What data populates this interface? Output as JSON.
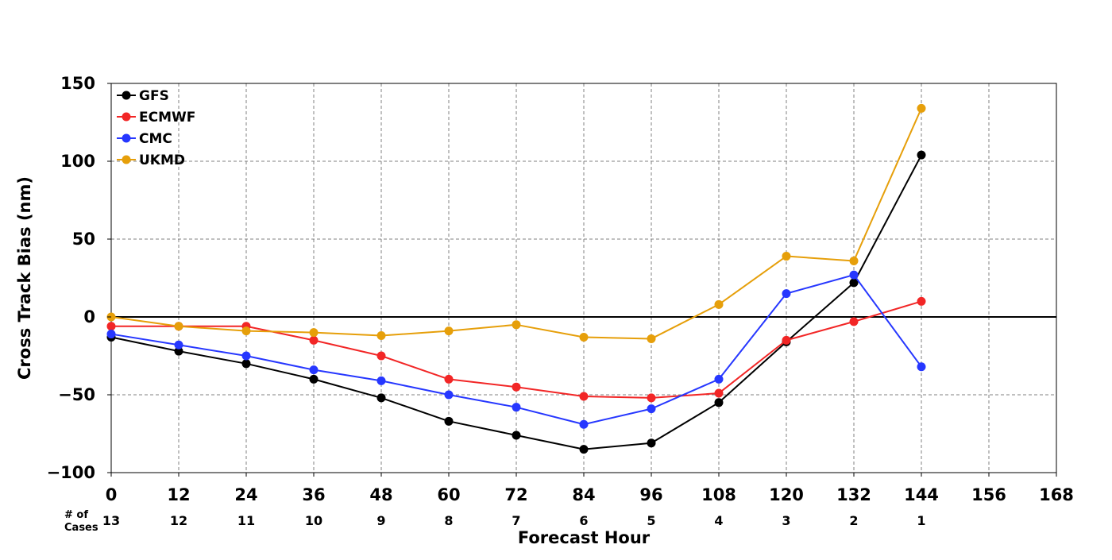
{
  "chart_data": {
    "type": "line",
    "xlabel": "Forecast Hour",
    "ylabel": "Cross Track Bias (nm)",
    "xlim": [
      0,
      168
    ],
    "ylim": [
      -100,
      150
    ],
    "x_ticks": [
      0,
      12,
      24,
      36,
      48,
      60,
      72,
      84,
      96,
      108,
      120,
      132,
      144,
      156,
      168
    ],
    "y_ticks": [
      -100,
      -50,
      0,
      50,
      100,
      150
    ],
    "y_tick_labels": [
      "−100",
      "−50",
      "0",
      "50",
      "100",
      "150"
    ],
    "grid": true,
    "legend_position": "top-left",
    "cases_title": "# of Cases",
    "cases": [
      {
        "x": 0,
        "n": 13
      },
      {
        "x": 12,
        "n": 12
      },
      {
        "x": 24,
        "n": 11
      },
      {
        "x": 36,
        "n": 10
      },
      {
        "x": 48,
        "n": 9
      },
      {
        "x": 60,
        "n": 8
      },
      {
        "x": 72,
        "n": 7
      },
      {
        "x": 84,
        "n": 6
      },
      {
        "x": 96,
        "n": 5
      },
      {
        "x": 108,
        "n": 4
      },
      {
        "x": 120,
        "n": 3
      },
      {
        "x": 132,
        "n": 2
      },
      {
        "x": 144,
        "n": 1
      }
    ],
    "x": [
      0,
      12,
      24,
      36,
      48,
      60,
      72,
      84,
      96,
      108,
      120,
      132,
      144
    ],
    "series": [
      {
        "name": "GFS",
        "color": "#000000",
        "values": [
          -13,
          -22,
          -30,
          -40,
          -52,
          -67,
          -76,
          -85,
          -81,
          -55,
          -16,
          22,
          104
        ]
      },
      {
        "name": "ECMWF",
        "color": "#f22626",
        "values": [
          -6,
          -6,
          -6,
          -15,
          -25,
          -40,
          -45,
          -51,
          -52,
          -49,
          -15,
          -3,
          10
        ]
      },
      {
        "name": "CMC",
        "color": "#2637ff",
        "values": [
          -11,
          -18,
          -25,
          -34,
          -41,
          -50,
          -58,
          -69,
          -59,
          -40,
          15,
          27,
          -32
        ]
      },
      {
        "name": "UKMD",
        "color": "#e69f0a",
        "values": [
          0,
          -6,
          -9,
          -10,
          -12,
          -9,
          -5,
          -13,
          -14,
          8,
          39,
          36,
          134
        ]
      }
    ]
  }
}
